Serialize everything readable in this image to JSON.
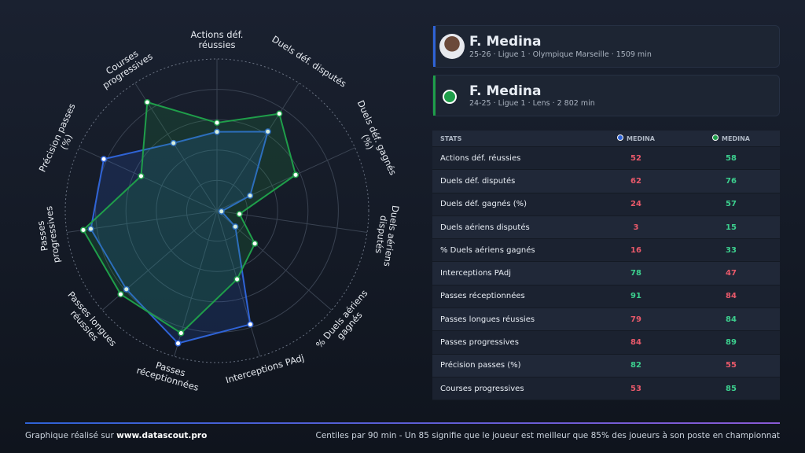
{
  "chart_data": {
    "type": "radar",
    "categories": [
      "Actions déf. réussies",
      "Duels déf. disputés",
      "Duels déf. gagnés (%)",
      "Duels aériens disputés",
      "% Duels aériens gagnés",
      "Interceptions PAdj",
      "Passes réceptionnées",
      "Passes longues réussies",
      "Passes progressives",
      "Précision passes (%)",
      "Courses progressives"
    ],
    "series": [
      {
        "name": "MEDINA",
        "color": "#2f63d6",
        "values": [
          52,
          62,
          24,
          3,
          16,
          78,
          91,
          79,
          84,
          82,
          53
        ]
      },
      {
        "name": "MEDINA",
        "color": "#1f9e4a",
        "values": [
          58,
          76,
          57,
          15,
          33,
          47,
          84,
          84,
          89,
          55,
          85
        ]
      }
    ],
    "rlim": [
      0,
      100
    ],
    "rticks": [
      20,
      40,
      60,
      80,
      100
    ]
  },
  "players": [
    {
      "name": "F. Medina",
      "info": "25-26 · Ligue 1 · Olympique Marseille · 1509 min"
    },
    {
      "name": "F. Medina",
      "info": "24-25 · Ligue 1 · Lens · 2 802 min"
    }
  ],
  "table": {
    "header": "STATS"
  },
  "footer": {
    "prefix": "Graphique réalisé sur",
    "site": "www.datascout.pro",
    "note": "Centiles par 90 min - Un 85 signifie que le joueur est meilleur que 85% des joueurs à son poste en championnat"
  }
}
